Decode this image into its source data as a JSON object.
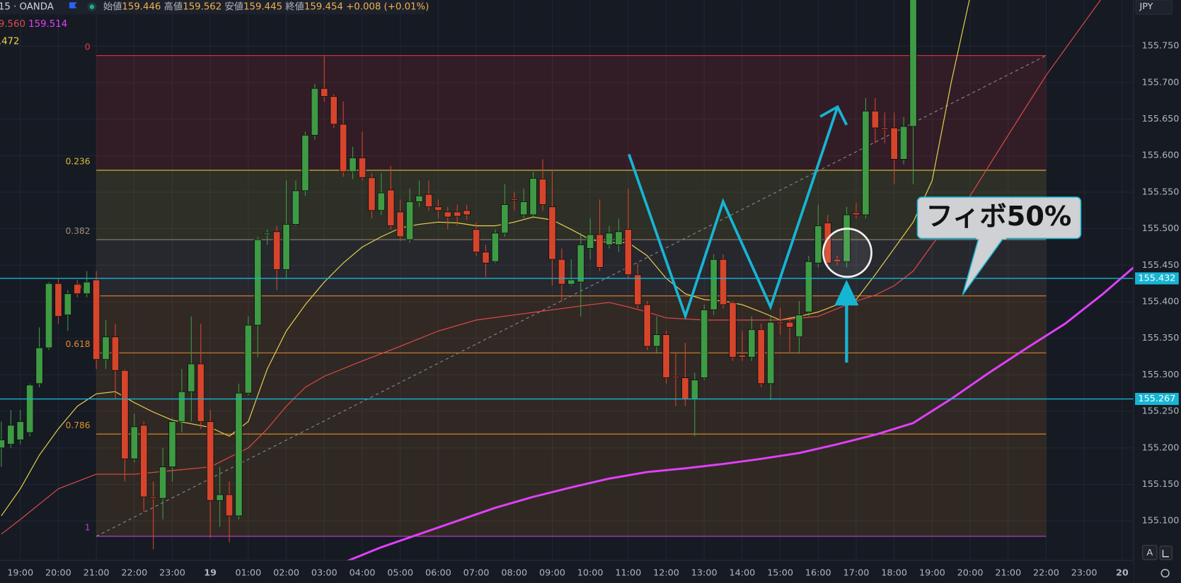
{
  "header": {
    "symbol": "15 · OANDA",
    "ohlc": [
      {
        "label": "始値",
        "value": "159.446"
      },
      {
        "label": "高値",
        "value": "159.562"
      },
      {
        "label": "安値",
        "value": "159.445"
      },
      {
        "label": "終値",
        "value": "159.454"
      }
    ],
    "change": "+0.008 (+0.01%)",
    "ma_values": [
      "9.560",
      "159.514"
    ],
    "ma_value_2": ".472"
  },
  "chart_data": {
    "type": "candlestick",
    "currency": "JPY",
    "scale_button": "A",
    "annotation": "フィボ50%",
    "up_color": "#3e9b43",
    "down_color": "#d6452b",
    "grid": true,
    "xlim": [
      18.465,
      48.3
    ],
    "ylim": [
      155.046,
      155.813
    ],
    "xticks": [
      {
        "value": 19,
        "label": "19:00"
      },
      {
        "value": 20,
        "label": "20:00"
      },
      {
        "value": 21,
        "label": "21:00"
      },
      {
        "value": 22,
        "label": "22:00"
      },
      {
        "value": 23,
        "label": "23:00"
      },
      {
        "value": 24,
        "label": "19"
      },
      {
        "value": 25,
        "label": "01:00"
      },
      {
        "value": 26,
        "label": "02:00"
      },
      {
        "value": 27,
        "label": "03:00"
      },
      {
        "value": 28,
        "label": "04:00"
      },
      {
        "value": 29,
        "label": "05:00"
      },
      {
        "value": 30,
        "label": "06:00"
      },
      {
        "value": 31,
        "label": "07:00"
      },
      {
        "value": 32,
        "label": "08:00"
      },
      {
        "value": 33,
        "label": "09:00"
      },
      {
        "value": 34,
        "label": "10:00"
      },
      {
        "value": 35,
        "label": "11:00"
      },
      {
        "value": 36,
        "label": "12:00"
      },
      {
        "value": 37,
        "label": "13:00"
      },
      {
        "value": 38,
        "label": "14:00"
      },
      {
        "value": 39,
        "label": "15:00"
      },
      {
        "value": 40,
        "label": "16:00"
      },
      {
        "value": 41,
        "label": "17:00"
      },
      {
        "value": 42,
        "label": "18:00"
      },
      {
        "value": 43,
        "label": "19:00"
      },
      {
        "value": 44,
        "label": "20:00"
      },
      {
        "value": 45,
        "label": "21:00"
      },
      {
        "value": 46,
        "label": "22:00"
      },
      {
        "value": 47,
        "label": "23:00"
      },
      {
        "value": 48,
        "label": "20"
      }
    ],
    "yticks": [
      {
        "value": 155.75,
        "label": "155.750"
      },
      {
        "value": 155.7,
        "label": "155.700"
      },
      {
        "value": 155.65,
        "label": "155.650"
      },
      {
        "value": 155.6,
        "label": "155.600"
      },
      {
        "value": 155.55,
        "label": "155.550"
      },
      {
        "value": 155.5,
        "label": "155.500"
      },
      {
        "value": 155.45,
        "label": "155.450"
      },
      {
        "value": 155.4,
        "label": "155.400"
      },
      {
        "value": 155.35,
        "label": "155.350"
      },
      {
        "value": 155.3,
        "label": "155.300"
      },
      {
        "value": 155.25,
        "label": "155.250"
      },
      {
        "value": 155.2,
        "label": "155.200"
      },
      {
        "value": 155.15,
        "label": "155.150"
      },
      {
        "value": 155.1,
        "label": "155.100"
      }
    ],
    "x": [
      18.5,
      18.75,
      19,
      19.25,
      19.5,
      19.75,
      20,
      20.25,
      20.5,
      20.75,
      21,
      21.25,
      21.5,
      21.75,
      22,
      22.25,
      22.5,
      22.75,
      23,
      23.25,
      23.5,
      23.75,
      24,
      24.25,
      24.5,
      24.75,
      25,
      25.25,
      25.5,
      25.75,
      26,
      26.25,
      26.5,
      26.75,
      27,
      27.25,
      27.5,
      27.75,
      28,
      28.25,
      28.5,
      28.75,
      29,
      29.25,
      29.5,
      29.75,
      30,
      30.25,
      30.5,
      30.75,
      31,
      31.25,
      31.5,
      31.75,
      32,
      32.25,
      32.5,
      32.75,
      33,
      33.25,
      33.5,
      33.75,
      34,
      34.25,
      34.5,
      34.75,
      35,
      35.25,
      35.5,
      35.75,
      36,
      36.25,
      36.5,
      36.75,
      37,
      37.25,
      37.5,
      37.75,
      38,
      38.25,
      38.5,
      38.75,
      39,
      39.25,
      39.5,
      39.75,
      40,
      40.25,
      40.5,
      40.75,
      41,
      41.25,
      41.5,
      41.75,
      42,
      42.25,
      42.5
    ],
    "open": [
      155.2,
      155.205,
      155.211,
      155.221,
      155.288,
      155.337,
      155.425,
      155.382,
      155.424,
      155.411,
      155.43,
      155.321,
      155.352,
      155.306,
      155.185,
      155.231,
      155.133,
      155.131,
      155.174,
      155.236,
      155.277,
      155.315,
      155.236,
      155.128,
      155.136,
      155.107,
      155.275,
      155.368,
      155.492,
      155.496,
      155.444,
      155.506,
      155.552,
      155.628,
      155.692,
      155.681,
      155.643,
      155.578,
      155.597,
      155.57,
      155.525,
      155.553,
      155.523,
      155.485,
      155.537,
      155.547,
      155.53,
      155.523,
      155.523,
      155.525,
      155.499,
      155.468,
      155.455,
      155.494,
      155.541,
      155.519,
      155.519,
      155.568,
      155.53,
      155.458,
      155.424,
      155.427,
      155.473,
      155.492,
      155.478,
      155.478,
      155.499,
      155.437,
      155.396,
      155.339,
      155.355,
      155.298,
      155.296,
      155.267,
      155.296,
      155.389,
      155.458,
      155.399,
      155.327,
      155.324,
      155.362,
      155.288,
      155.372,
      155.372,
      155.352,
      155.386,
      155.453,
      155.508,
      155.458,
      155.455,
      155.522,
      155.519,
      155.661,
      155.638,
      155.638,
      155.595,
      155.64
    ],
    "high": [
      155.236,
      155.252,
      155.252,
      155.288,
      155.365,
      155.427,
      155.432,
      155.416,
      155.43,
      155.442,
      155.442,
      155.375,
      155.37,
      155.308,
      155.247,
      155.236,
      155.154,
      155.2,
      155.241,
      155.308,
      155.38,
      155.37,
      155.252,
      155.174,
      155.154,
      155.288,
      155.38,
      155.489,
      155.499,
      155.504,
      155.566,
      155.566,
      155.633,
      155.698,
      155.736,
      155.684,
      155.674,
      155.612,
      155.633,
      155.576,
      155.576,
      155.586,
      155.54,
      155.555,
      155.566,
      155.566,
      155.54,
      155.53,
      155.533,
      155.533,
      155.509,
      155.478,
      155.499,
      155.561,
      155.55,
      155.555,
      155.578,
      155.595,
      155.581,
      155.473,
      155.458,
      155.494,
      155.514,
      155.54,
      155.504,
      155.514,
      155.555,
      155.453,
      155.401,
      155.38,
      155.36,
      155.329,
      155.344,
      155.303,
      155.396,
      155.465,
      155.465,
      155.401,
      155.36,
      155.38,
      155.37,
      155.38,
      155.391,
      155.38,
      155.401,
      155.463,
      155.533,
      155.519,
      155.463,
      155.53,
      155.535,
      155.679,
      155.679,
      155.659,
      155.659,
      155.653,
      155.818
    ],
    "low": [
      155.174,
      155.2,
      155.205,
      155.216,
      155.283,
      155.334,
      155.37,
      155.36,
      155.406,
      155.406,
      155.308,
      155.308,
      155.267,
      155.154,
      155.18,
      155.113,
      155.061,
      155.102,
      155.154,
      155.221,
      155.236,
      155.226,
      155.077,
      155.092,
      155.071,
      155.102,
      155.272,
      155.324,
      155.478,
      155.416,
      155.432,
      155.504,
      155.545,
      155.622,
      155.674,
      155.638,
      155.571,
      155.568,
      155.566,
      155.514,
      155.519,
      155.499,
      155.483,
      155.481,
      155.53,
      155.525,
      155.514,
      155.499,
      155.504,
      155.512,
      155.463,
      155.434,
      155.453,
      155.489,
      155.525,
      155.514,
      155.514,
      155.525,
      155.422,
      155.401,
      155.422,
      155.38,
      155.458,
      155.442,
      155.473,
      155.468,
      155.432,
      155.391,
      155.334,
      155.329,
      155.288,
      155.257,
      155.257,
      155.216,
      155.293,
      155.382,
      155.391,
      155.319,
      155.319,
      155.319,
      155.283,
      155.265,
      155.355,
      155.331,
      155.329,
      155.38,
      155.447,
      155.447,
      155.45,
      155.447,
      155.514,
      155.514,
      155.617,
      155.617,
      155.561,
      155.588,
      155.561
    ],
    "close": [
      155.211,
      155.231,
      155.236,
      155.286,
      155.337,
      155.425,
      155.38,
      155.411,
      155.411,
      155.427,
      155.321,
      155.352,
      155.306,
      155.185,
      155.229,
      155.133,
      155.131,
      155.174,
      155.236,
      155.277,
      155.315,
      155.236,
      155.128,
      155.136,
      155.107,
      155.275,
      155.368,
      155.485,
      155.494,
      155.444,
      155.506,
      155.552,
      155.628,
      155.692,
      155.681,
      155.643,
      155.578,
      155.597,
      155.57,
      155.525,
      155.549,
      155.504,
      155.489,
      155.537,
      155.545,
      155.53,
      155.525,
      155.516,
      155.517,
      155.519,
      155.468,
      155.453,
      155.494,
      155.533,
      155.539,
      155.537,
      155.569,
      155.533,
      155.458,
      155.424,
      155.43,
      155.478,
      155.492,
      155.447,
      155.494,
      155.496,
      155.437,
      155.396,
      155.339,
      155.355,
      155.296,
      155.296,
      155.267,
      155.293,
      155.389,
      155.458,
      155.396,
      155.324,
      155.324,
      155.362,
      155.288,
      155.372,
      155.37,
      155.365,
      155.382,
      155.455,
      155.504,
      155.453,
      155.455,
      155.519,
      155.519,
      155.661,
      155.638,
      155.636,
      155.595,
      155.64,
      155.818
    ],
    "lines": [
      {
        "color": "#e8d44d",
        "x": [
          18.5,
          19,
          19.5,
          20,
          20.5,
          21,
          21.5,
          22,
          22.5,
          23,
          23.5,
          24,
          24.5,
          25,
          25.5,
          26,
          26.5,
          27,
          27.5,
          28,
          28.5,
          29,
          29.5,
          30,
          30.5,
          31,
          31.5,
          32,
          32.5,
          33,
          33.5,
          34,
          34.5,
          35,
          35.5,
          36,
          36.5,
          37,
          37.5,
          38,
          38.5,
          39,
          39.5,
          40,
          40.5,
          41,
          41.5,
          42,
          42.5,
          43,
          43.5,
          44
        ],
        "values": [
          155.107,
          155.144,
          155.19,
          155.226,
          155.257,
          155.274,
          155.277,
          155.262,
          155.249,
          155.238,
          155.233,
          155.228,
          155.216,
          155.236,
          155.308,
          155.36,
          155.396,
          155.427,
          155.453,
          155.475,
          155.489,
          155.501,
          155.506,
          155.509,
          155.508,
          155.504,
          155.504,
          155.509,
          155.516,
          155.512,
          155.499,
          155.485,
          155.481,
          155.481,
          155.463,
          155.432,
          155.411,
          155.403,
          155.401,
          155.396,
          155.386,
          155.375,
          155.38,
          155.386,
          155.396,
          155.403,
          155.437,
          155.473,
          155.509,
          155.566,
          155.7,
          155.818
        ]
      },
      {
        "color": "#e04a4a",
        "x": [
          18.5,
          19,
          20,
          21,
          22,
          23,
          24,
          25,
          25.5,
          26,
          26.5,
          27,
          28,
          29,
          30,
          31,
          32,
          33,
          34,
          34.5,
          35,
          35.5,
          36,
          37,
          38,
          39,
          40,
          41,
          41.5,
          42,
          42.5,
          43,
          44,
          45,
          46,
          47,
          47.5
        ],
        "values": [
          155.082,
          155.102,
          155.144,
          155.164,
          155.164,
          155.169,
          155.174,
          155.2,
          155.226,
          155.257,
          155.283,
          155.298,
          155.319,
          155.339,
          155.36,
          155.375,
          155.382,
          155.389,
          155.396,
          155.399,
          155.393,
          155.386,
          155.378,
          155.375,
          155.375,
          155.375,
          155.38,
          155.401,
          155.409,
          155.422,
          155.442,
          155.478,
          155.545,
          155.628,
          155.71,
          155.782,
          155.818
        ]
      },
      {
        "color": "#e040fb",
        "x": [
          27.5,
          28.5,
          29.5,
          30.5,
          31.5,
          32.5,
          33.5,
          34.5,
          35.5,
          36.5,
          37.5,
          38.5,
          39.5,
          40.5,
          41.5,
          42.5,
          43.5,
          44.5,
          45.5,
          46.5,
          47.5,
          48.3
        ],
        "values": [
          155.043,
          155.064,
          155.082,
          155.1,
          155.118,
          155.133,
          155.146,
          155.158,
          155.167,
          155.172,
          155.178,
          155.185,
          155.193,
          155.205,
          155.218,
          155.234,
          155.267,
          155.303,
          155.337,
          155.37,
          155.411,
          155.447
        ]
      }
    ],
    "fib": {
      "x": [
        21,
        46
      ],
      "levels": [
        {
          "ratio": 0,
          "price": 155.737,
          "color": "#f23645"
        },
        {
          "ratio": 0.236,
          "price": 155.58,
          "color": "#d4c13a"
        },
        {
          "ratio": 0.382,
          "price": 155.485,
          "color": "#9c8c7c"
        },
        {
          "ratio": 0.5,
          "price": 155.408,
          "color": "#f09030"
        },
        {
          "ratio": 0.618,
          "price": 155.33,
          "color": "#e08a30"
        },
        {
          "ratio": 0.786,
          "price": 155.219,
          "color": "#e0902a"
        },
        {
          "ratio": 1,
          "price": 155.079,
          "color": "#c040d0"
        }
      ]
    },
    "hlines": [
      {
        "value": 155.432,
        "color": "#17b5d4"
      },
      {
        "value": 155.267,
        "color": "#17b5d4"
      }
    ]
  }
}
